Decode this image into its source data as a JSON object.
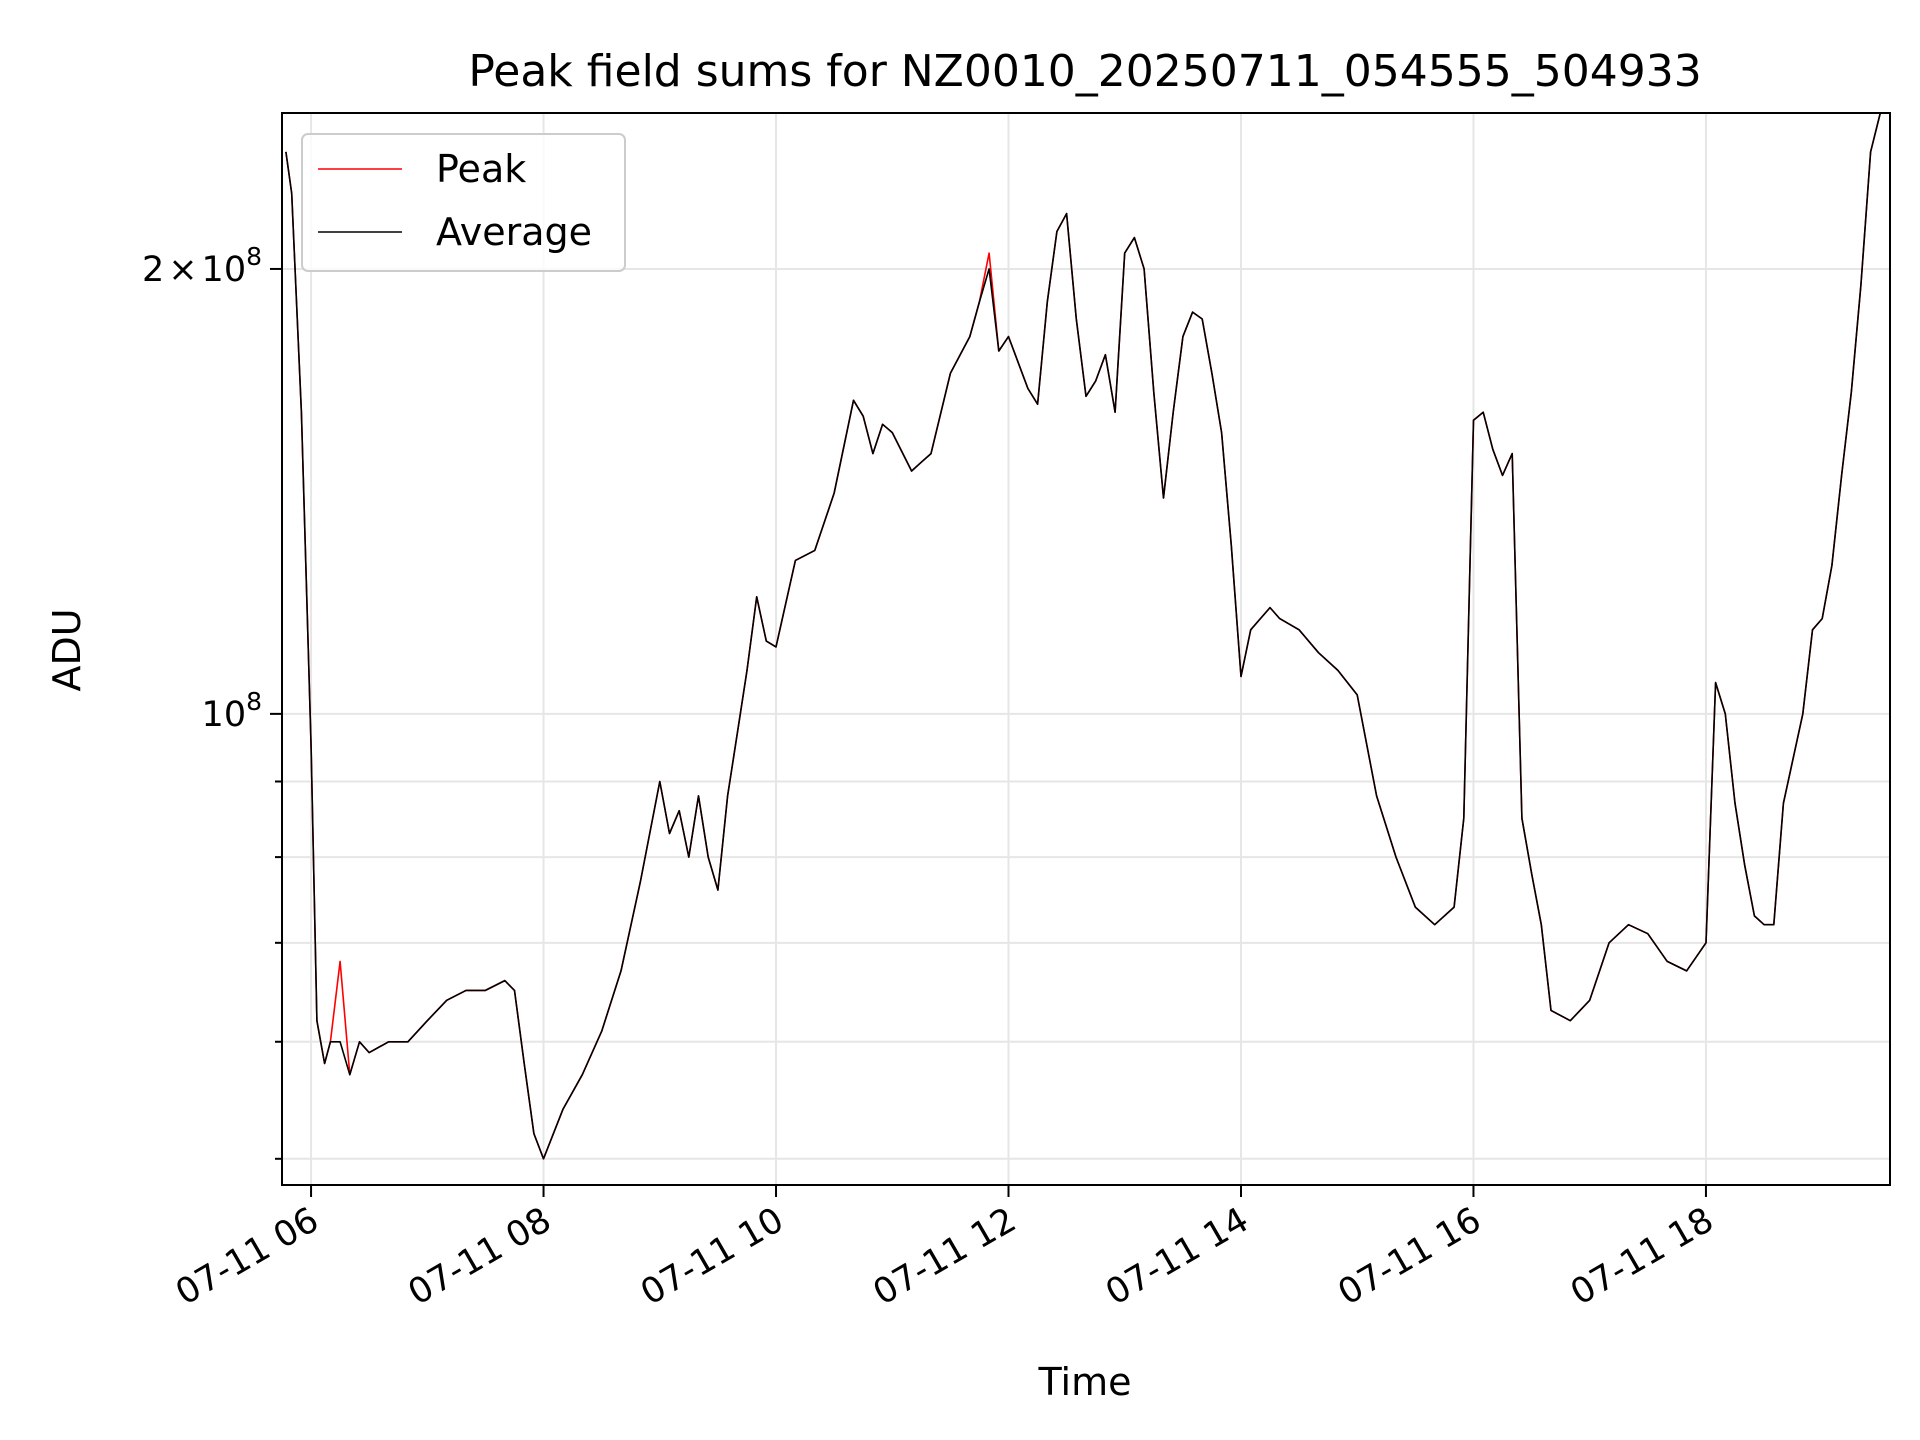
{
  "chart_data": {
    "type": "line",
    "title": "Peak field sums for NZ0010_20250711_054555_504933",
    "xlabel": "Time",
    "ylabel": "ADU",
    "yscale": "log",
    "grid": true,
    "legend_position": "top-left",
    "xlim": [
      "07-11 05:45",
      "07-11 19:35"
    ],
    "ylim": [
      48000000,
      255000000
    ],
    "x_ticks": [
      "07-11 06",
      "07-11 08",
      "07-11 10",
      "07-11 12",
      "07-11 14",
      "07-11 16",
      "07-11 18"
    ],
    "y_ticks": [
      {
        "value": 100000000,
        "base": "10",
        "exp": "8"
      },
      {
        "value": 200000000,
        "coef": "2",
        "times": "×",
        "base": "10",
        "exp": "8"
      }
    ],
    "x": [
      "07-11 05:47",
      "07-11 05:50",
      "07-11 05:55",
      "07-11 06:00",
      "07-11 06:03",
      "07-11 06:07",
      "07-11 06:10",
      "07-11 06:15",
      "07-11 06:20",
      "07-11 06:25",
      "07-11 06:30",
      "07-11 06:40",
      "07-11 06:50",
      "07-11 07:00",
      "07-11 07:10",
      "07-11 07:20",
      "07-11 07:30",
      "07-11 07:40",
      "07-11 07:45",
      "07-11 07:50",
      "07-11 07:55",
      "07-11 08:00",
      "07-11 08:10",
      "07-11 08:20",
      "07-11 08:30",
      "07-11 08:40",
      "07-11 08:50",
      "07-11 09:00",
      "07-11 09:05",
      "07-11 09:10",
      "07-11 09:15",
      "07-11 09:20",
      "07-11 09:25",
      "07-11 09:30",
      "07-11 09:35",
      "07-11 09:40",
      "07-11 09:45",
      "07-11 09:50",
      "07-11 09:55",
      "07-11 10:00",
      "07-11 10:10",
      "07-11 10:20",
      "07-11 10:30",
      "07-11 10:40",
      "07-11 10:45",
      "07-11 10:50",
      "07-11 10:55",
      "07-11 11:00",
      "07-11 11:10",
      "07-11 11:15",
      "07-11 11:20",
      "07-11 11:30",
      "07-11 11:40",
      "07-11 11:45",
      "07-11 11:50",
      "07-11 11:55",
      "07-11 12:00",
      "07-11 12:10",
      "07-11 12:15",
      "07-11 12:20",
      "07-11 12:25",
      "07-11 12:30",
      "07-11 12:35",
      "07-11 12:40",
      "07-11 12:45",
      "07-11 12:50",
      "07-11 12:55",
      "07-11 13:00",
      "07-11 13:05",
      "07-11 13:10",
      "07-11 13:15",
      "07-11 13:20",
      "07-11 13:25",
      "07-11 13:30",
      "07-11 13:35",
      "07-11 13:40",
      "07-11 13:45",
      "07-11 13:50",
      "07-11 13:55",
      "07-11 14:00",
      "07-11 14:05",
      "07-11 14:10",
      "07-11 14:15",
      "07-11 14:20",
      "07-11 14:30",
      "07-11 14:40",
      "07-11 14:50",
      "07-11 15:00",
      "07-11 15:10",
      "07-11 15:20",
      "07-11 15:30",
      "07-11 15:40",
      "07-11 15:50",
      "07-11 15:55",
      "07-11 16:00",
      "07-11 16:05",
      "07-11 16:10",
      "07-11 16:15",
      "07-11 16:20",
      "07-11 16:25",
      "07-11 16:30",
      "07-11 16:35",
      "07-11 16:40",
      "07-11 16:50",
      "07-11 17:00",
      "07-11 17:10",
      "07-11 17:20",
      "07-11 17:30",
      "07-11 17:40",
      "07-11 17:50",
      "07-11 18:00",
      "07-11 18:05",
      "07-11 18:10",
      "07-11 18:15",
      "07-11 18:20",
      "07-11 18:25",
      "07-11 18:30",
      "07-11 18:35",
      "07-11 18:40",
      "07-11 18:50",
      "07-11 18:55",
      "07-11 19:00",
      "07-11 19:05",
      "07-11 19:10",
      "07-11 19:15",
      "07-11 19:20",
      "07-11 19:25",
      "07-11 19:30",
      "07-11 19:35"
    ],
    "series": [
      {
        "name": "Peak",
        "color": "#ff0000",
        "values": [
          240000000,
          225000000,
          160000000,
          95000000,
          62000000,
          58000000,
          60000000,
          68000000,
          57000000,
          60000000,
          59000000,
          60000000,
          60000000,
          62000000,
          64000000,
          65000000,
          65000000,
          66000000,
          65000000,
          58000000,
          52000000,
          50000000,
          54000000,
          57000000,
          61000000,
          67000000,
          77000000,
          90000000,
          83000000,
          86000000,
          80000000,
          88000000,
          80000000,
          76000000,
          88000000,
          97000000,
          107000000,
          120000000,
          112000000,
          111000000,
          127000000,
          129000000,
          141000000,
          163000000,
          159000000,
          150000000,
          157000000,
          155000000,
          146000000,
          148000000,
          150000000,
          170000000,
          180000000,
          190000000,
          205000000,
          176000000,
          180000000,
          166000000,
          162000000,
          190000000,
          212000000,
          218000000,
          185000000,
          164000000,
          168000000,
          175000000,
          160000000,
          205000000,
          210000000,
          200000000,
          165000000,
          140000000,
          160000000,
          180000000,
          187000000,
          185000000,
          170000000,
          155000000,
          130000000,
          106000000,
          114000000,
          116000000,
          118000000,
          116000000,
          114000000,
          110000000,
          107000000,
          103000000,
          88000000,
          80000000,
          74000000,
          72000000,
          74000000,
          85000000,
          158000000,
          160000000,
          151000000,
          145000000,
          150000000,
          85000000,
          78000000,
          72000000,
          63000000,
          62000000,
          64000000,
          70000000,
          72000000,
          71000000,
          68000000,
          67000000,
          70000000,
          105000000,
          100000000,
          87000000,
          79000000,
          73000000,
          72000000,
          72000000,
          87000000,
          100000000,
          114000000,
          116000000,
          126000000,
          145000000,
          165000000,
          195000000,
          240000000,
          255000000,
          255000000
        ]
      },
      {
        "name": "Average",
        "color": "#000000",
        "values": [
          240000000,
          225000000,
          160000000,
          95000000,
          62000000,
          58000000,
          60000000,
          60000000,
          57000000,
          60000000,
          59000000,
          60000000,
          60000000,
          62000000,
          64000000,
          65000000,
          65000000,
          66000000,
          65000000,
          58000000,
          52000000,
          50000000,
          54000000,
          57000000,
          61000000,
          67000000,
          77000000,
          90000000,
          83000000,
          86000000,
          80000000,
          88000000,
          80000000,
          76000000,
          88000000,
          97000000,
          107000000,
          120000000,
          112000000,
          111000000,
          127000000,
          129000000,
          141000000,
          163000000,
          159000000,
          150000000,
          157000000,
          155000000,
          146000000,
          148000000,
          150000000,
          170000000,
          180000000,
          190000000,
          200000000,
          176000000,
          180000000,
          166000000,
          162000000,
          190000000,
          212000000,
          218000000,
          185000000,
          164000000,
          168000000,
          175000000,
          160000000,
          205000000,
          210000000,
          200000000,
          165000000,
          140000000,
          160000000,
          180000000,
          187000000,
          185000000,
          170000000,
          155000000,
          130000000,
          106000000,
          114000000,
          116000000,
          118000000,
          116000000,
          114000000,
          110000000,
          107000000,
          103000000,
          88000000,
          80000000,
          74000000,
          72000000,
          74000000,
          85000000,
          158000000,
          160000000,
          151000000,
          145000000,
          150000000,
          85000000,
          78000000,
          72000000,
          63000000,
          62000000,
          64000000,
          70000000,
          72000000,
          71000000,
          68000000,
          67000000,
          70000000,
          105000000,
          100000000,
          87000000,
          79000000,
          73000000,
          72000000,
          72000000,
          87000000,
          100000000,
          114000000,
          116000000,
          126000000,
          145000000,
          165000000,
          195000000,
          240000000,
          255000000,
          255000000
        ]
      }
    ]
  }
}
